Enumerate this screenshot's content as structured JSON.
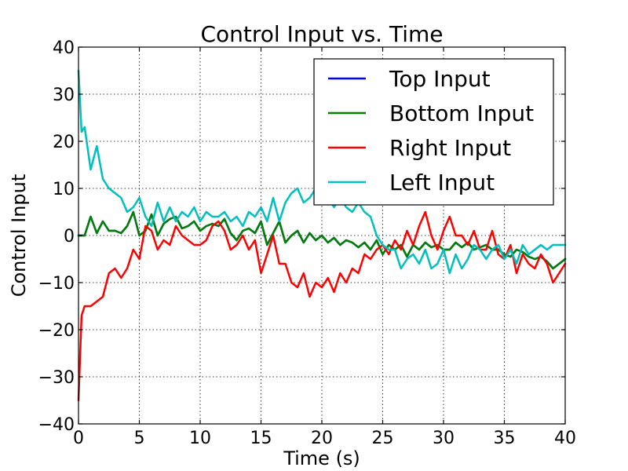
{
  "chart_data": {
    "type": "line",
    "title": "Control Input vs. Time",
    "xlabel": "Time (s)",
    "ylabel": "Control Input",
    "xlim": [
      0,
      40
    ],
    "ylim": [
      -40,
      40
    ],
    "xticks": [
      0,
      5,
      10,
      15,
      20,
      25,
      30,
      35,
      40
    ],
    "yticks": [
      -40,
      -30,
      -20,
      -10,
      0,
      10,
      20,
      30,
      40
    ],
    "xtick_labels": [
      "0",
      "5",
      "10",
      "15",
      "20",
      "25",
      "30",
      "35",
      "40"
    ],
    "ytick_labels": [
      "−40",
      "−30",
      "−20",
      "−10",
      "0",
      "10",
      "20",
      "30",
      "40"
    ],
    "grid": true,
    "legend_position": "upper-right",
    "series": [
      {
        "name": "Top Input",
        "color": "#0000ff",
        "x": [
          0,
          0.5,
          1,
          1.5,
          2,
          2.5,
          3,
          3.5,
          4,
          4.5,
          5,
          5.5,
          6,
          6.5,
          7,
          7.5,
          8,
          8.5,
          9,
          9.5,
          10,
          10.5,
          11,
          11.5,
          12,
          12.5,
          13,
          13.5,
          14,
          14.5,
          15,
          15.5,
          16,
          16.5,
          17,
          17.5,
          18,
          18.5,
          19,
          19.5,
          20,
          20.5,
          21,
          21.5,
          22,
          22.5,
          23,
          23.5,
          24,
          24.5,
          25,
          25.5,
          26,
          26.5,
          27,
          27.5,
          28,
          28.5,
          29,
          29.5,
          30,
          30.5,
          31,
          31.5,
          32,
          32.5,
          33,
          33.5,
          34,
          34.5,
          35,
          35.5,
          36,
          36.5,
          37,
          37.5,
          38,
          38.5,
          39,
          39.5,
          40
        ],
        "y": [
          0,
          0,
          4,
          0.5,
          3,
          1,
          1,
          0.5,
          2,
          5,
          0,
          1,
          4.5,
          0,
          2.5,
          3.5,
          4,
          1.5,
          2,
          3,
          1,
          2,
          2.5,
          2,
          3.5,
          0.5,
          -1,
          1,
          1.5,
          0.5,
          3,
          -2,
          0.5,
          3,
          -1.5,
          0,
          1,
          -1.5,
          0.5,
          -1,
          0,
          -1.5,
          -0.5,
          -2,
          -1,
          -1.5,
          -2.5,
          -1.5,
          -3,
          -1,
          -4,
          -2,
          -3,
          -2,
          -4.5,
          -2,
          -3,
          -1.5,
          -2.5,
          -2,
          -3,
          -3,
          -1.5,
          -2.5,
          -1.5,
          -3,
          -2.5,
          -2,
          -3,
          -3,
          -4,
          -4.5,
          -3,
          -3.5,
          -4.5,
          -5,
          -4.5,
          -5.5,
          -7,
          -6,
          -5
        ]
      },
      {
        "name": "Bottom Input",
        "color": "#008000",
        "x": [
          0,
          0.5,
          1,
          1.5,
          2,
          2.5,
          3,
          3.5,
          4,
          4.5,
          5,
          5.5,
          6,
          6.5,
          7,
          7.5,
          8,
          8.5,
          9,
          9.5,
          10,
          10.5,
          11,
          11.5,
          12,
          12.5,
          13,
          13.5,
          14,
          14.5,
          15,
          15.5,
          16,
          16.5,
          17,
          17.5,
          18,
          18.5,
          19,
          19.5,
          20,
          20.5,
          21,
          21.5,
          22,
          22.5,
          23,
          23.5,
          24,
          24.5,
          25,
          25.5,
          26,
          26.5,
          27,
          27.5,
          28,
          28.5,
          29,
          29.5,
          30,
          30.5,
          31,
          31.5,
          32,
          32.5,
          33,
          33.5,
          34,
          34.5,
          35,
          35.5,
          36,
          36.5,
          37,
          37.5,
          38,
          38.5,
          39,
          39.5,
          40
        ],
        "y": [
          0,
          0,
          4,
          0.5,
          3,
          1,
          1,
          0.5,
          2,
          5,
          0,
          1,
          4.5,
          0,
          2.5,
          3.5,
          4,
          1.5,
          2,
          3,
          1,
          2,
          2.5,
          2,
          3.5,
          0.5,
          -1,
          1,
          1.5,
          0.5,
          3,
          -2,
          0.5,
          3,
          -1.5,
          0,
          1,
          -1.5,
          0.5,
          -1,
          0,
          -1.5,
          -0.5,
          -2,
          -1,
          -1.5,
          -2.5,
          -1.5,
          -3,
          -1,
          -4,
          -2,
          -3,
          -2,
          -4.5,
          -2,
          -3,
          -1.5,
          -2.5,
          -2,
          -3,
          -3,
          -1.5,
          -2.5,
          -1.5,
          -3,
          -2.5,
          -2,
          -3,
          -3,
          -4,
          -4.5,
          -3,
          -3.5,
          -4.5,
          -5,
          -4.5,
          -5.5,
          -7,
          -6,
          -5
        ]
      },
      {
        "name": "Right Input",
        "color": "#ff0000",
        "x": [
          0,
          0.25,
          0.5,
          1,
          1.5,
          2,
          2.5,
          3,
          3.5,
          4,
          4.5,
          5,
          5.5,
          6,
          6.5,
          7,
          7.5,
          8,
          8.5,
          9,
          9.5,
          10,
          10.5,
          11,
          11.5,
          12,
          12.5,
          13,
          13.5,
          14,
          14.5,
          15,
          15.5,
          16,
          16.5,
          17,
          17.5,
          18,
          18.5,
          19,
          19.5,
          20,
          20.5,
          21,
          21.5,
          22,
          22.5,
          23,
          23.5,
          24,
          24.5,
          25,
          25.5,
          26,
          26.5,
          27,
          27.5,
          28,
          28.5,
          29,
          29.5,
          30,
          30.5,
          31,
          31.5,
          32,
          32.5,
          33,
          33.5,
          34,
          34.5,
          35,
          35.5,
          36,
          36.5,
          37,
          37.5,
          38,
          38.5,
          39,
          39.5,
          40
        ],
        "y": [
          -35,
          -17,
          -15,
          -15,
          -14,
          -13,
          -8,
          -7,
          -9,
          -7,
          -3,
          -5,
          2,
          1,
          -3,
          -1,
          -2,
          2,
          0,
          -1,
          -2,
          -2,
          -1,
          2,
          3,
          1,
          -3,
          -2,
          0,
          -3,
          -1,
          -8,
          -4,
          0,
          -6,
          -6,
          -10,
          -11,
          -8,
          -13,
          -10,
          -11,
          -9,
          -12,
          -8,
          -10,
          -7,
          -8,
          -4,
          -5,
          -3,
          -2,
          -4,
          -1,
          -3,
          1,
          -2,
          2,
          5,
          0,
          -3,
          1,
          4,
          0,
          0,
          -2,
          1,
          -3,
          -3,
          1,
          -4,
          -5,
          -2,
          -8,
          -4,
          -6,
          -7,
          -4,
          -6,
          -10,
          -8,
          -6
        ]
      },
      {
        "name": "Left Input",
        "color": "#00bfbf",
        "x": [
          0,
          0.25,
          0.5,
          1,
          1.5,
          2,
          2.5,
          3,
          3.5,
          4,
          4.5,
          5,
          5.5,
          6,
          6.5,
          7,
          7.5,
          8,
          8.5,
          9,
          9.5,
          10,
          10.5,
          11,
          11.5,
          12,
          12.5,
          13,
          13.5,
          14,
          14.5,
          15,
          15.5,
          16,
          16.5,
          17,
          17.5,
          18,
          18.5,
          19,
          19.5,
          20,
          20.5,
          21,
          21.5,
          22,
          22.5,
          23,
          23.5,
          24,
          24.5,
          25,
          25.5,
          26,
          26.5,
          27,
          27.5,
          28,
          28.5,
          29,
          29.5,
          30,
          30.5,
          31,
          31.5,
          32,
          32.5,
          33,
          33.5,
          34,
          34.5,
          35,
          35.5,
          36,
          36.5,
          37,
          37.5,
          38,
          38.5,
          39,
          39.5,
          40
        ],
        "y": [
          35,
          22,
          23,
          14,
          19,
          12,
          10,
          9,
          8,
          5,
          6,
          8,
          4,
          2,
          7,
          3,
          6,
          3,
          5,
          4,
          6,
          3,
          5,
          4,
          4,
          5,
          3,
          4,
          2,
          5,
          4,
          6,
          3,
          8,
          3,
          7,
          9,
          10,
          7,
          8,
          10,
          7,
          8,
          6,
          8,
          6,
          5,
          7,
          5,
          4,
          0,
          -2,
          -3,
          -3,
          -7,
          -5,
          -4,
          -6,
          -3,
          -7,
          -6,
          -3,
          -8,
          -4,
          -7,
          -5,
          -2,
          -3,
          -5,
          -3,
          -2,
          -5,
          -3,
          -6,
          -2,
          -4,
          -3,
          -2,
          -3,
          -2,
          -2,
          -2
        ]
      }
    ]
  }
}
